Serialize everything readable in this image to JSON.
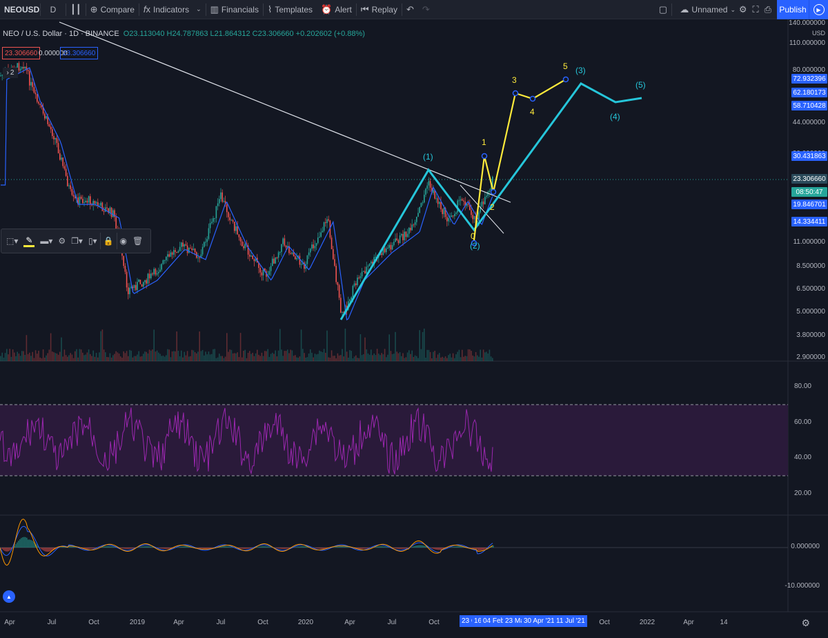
{
  "toolbar": {
    "symbol": "NEOUSD",
    "interval": "D",
    "compare": "Compare",
    "indicators": "Indicators",
    "financials": "Financials",
    "templates": "Templates",
    "alert": "Alert",
    "replay": "Replay",
    "layout_name": "Unnamed",
    "publish": "Publish"
  },
  "legend": {
    "symbol_line": "NEO / U.S. Dollar · 1D · BINANCE",
    "ohlc": "O23.113040 H24.787863 L21.864312 C23.306660 +0.202602 (+0.88%)",
    "chip_red": "23.306660",
    "chip_zero": "0.000000",
    "chip_blue": "23.306660",
    "collapse": "2"
  },
  "price_axis": {
    "unit": "USD",
    "labels": [
      "140.000000",
      "110.000000",
      "80.000000",
      "44.000000",
      "30.000000",
      "11.000000",
      "8.500000",
      "6.500000",
      "5.000000",
      "3.800000",
      "2.900000"
    ],
    "tags": [
      {
        "text": "72.932396",
        "color": "#2962ff"
      },
      {
        "text": "62.180173",
        "color": "#2962ff"
      },
      {
        "text": "58.710428",
        "color": "#2962ff"
      },
      {
        "text": "30.431863",
        "color": "#2962ff"
      },
      {
        "text": "23.306660",
        "color": "#2a4a5a"
      },
      {
        "text": "08:50:47",
        "color": "#26a69a"
      },
      {
        "text": "19.846701",
        "color": "#2962ff"
      },
      {
        "text": "14.334411",
        "color": "#2962ff"
      }
    ]
  },
  "rsi_axis": {
    "labels": [
      "80.00",
      "60.00",
      "40.00",
      "20.00"
    ],
    "upper": 70,
    "lower": 30
  },
  "macd_axis": {
    "labels": [
      "0.000000",
      "-10.000000"
    ]
  },
  "time_axis": {
    "labels": [
      "Apr",
      "Jul",
      "Oct",
      "2019",
      "Apr",
      "Jul",
      "Oct",
      "2020",
      "Apr",
      "Jul",
      "Oct",
      "Oct",
      "2022",
      "Apr",
      "14"
    ],
    "tags": [
      "23 C",
      "16",
      "04 Feb '2",
      "23 Mar",
      "30 Apr '21",
      "11 Jul '21"
    ]
  },
  "wave_labels": {
    "cyan": [
      "(1)",
      "(2)",
      "(3)",
      "(4)",
      "(5)"
    ],
    "yellow": [
      "0",
      "1",
      "2",
      "3",
      "4",
      "5"
    ]
  },
  "colors": {
    "background": "#131722",
    "cyan_wave": "#26c6da",
    "yellow_wave": "#ffeb3b",
    "ma_line": "#2962ff",
    "rsi_line": "#9c27b0",
    "rsi_band": "#2a1a3a",
    "up": "#26a69a",
    "down": "#ef5350"
  }
}
